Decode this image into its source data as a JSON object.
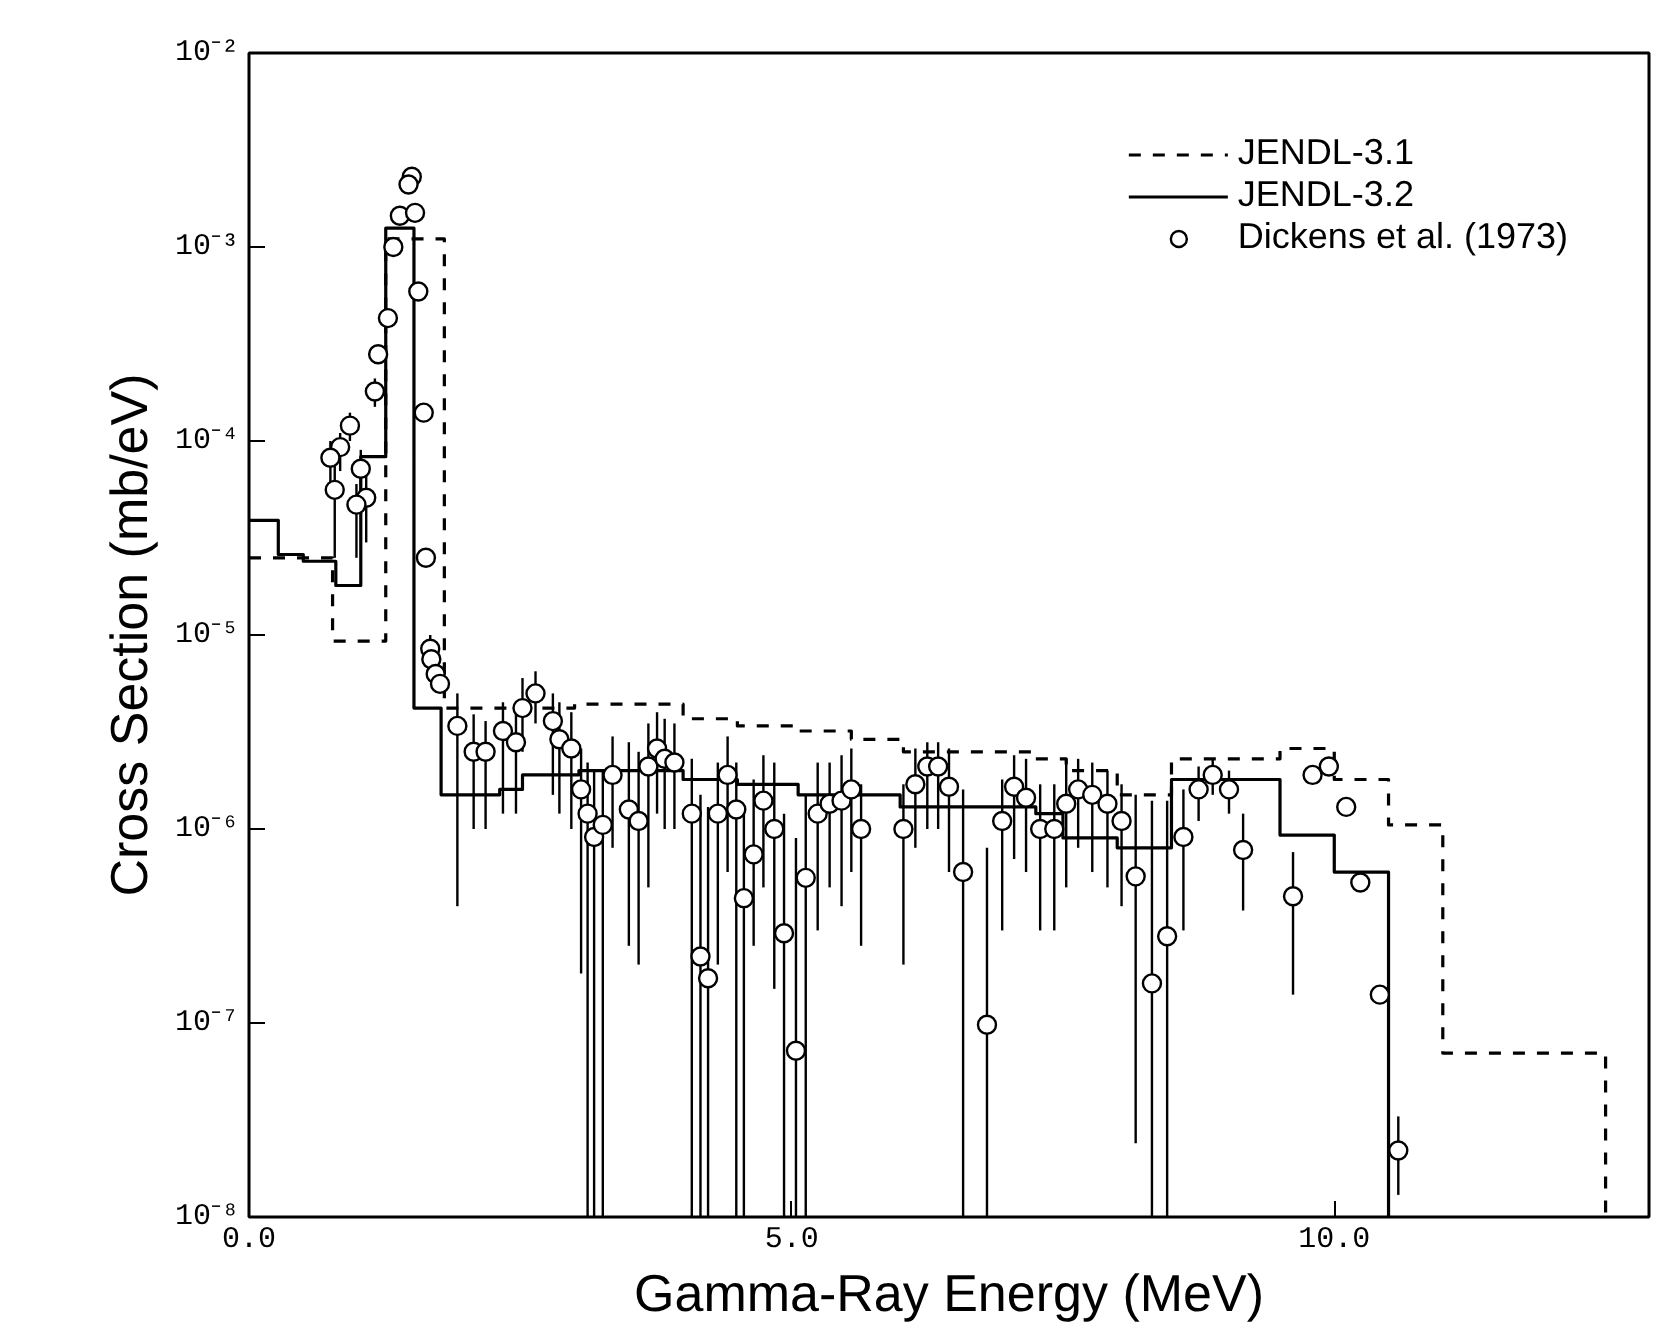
{
  "chart_data": {
    "type": "step",
    "xlabel": "Gamma-Ray Energy (MeV)",
    "ylabel": "Cross Section (mb/eV)",
    "log": "y",
    "grid": false,
    "legend": "top right",
    "xlim": [
      0,
      12.9
    ],
    "xticks": [
      {
        "value": 0,
        "label": "0.0"
      },
      {
        "value": 5,
        "label": "5.0"
      },
      {
        "value": 10,
        "label": "10.0"
      }
    ],
    "ylim": [
      1e-08,
      0.01
    ],
    "yticks": [
      {
        "value": 1e-08,
        "label": "10⁻⁸"
      },
      {
        "value": 1e-07,
        "label": "10⁻⁷"
      },
      {
        "value": 1e-06,
        "label": "10⁻⁶"
      },
      {
        "value": 1e-05,
        "label": "10⁻⁵"
      },
      {
        "value": 0.0001,
        "label": "10⁻⁴"
      },
      {
        "value": 0.001,
        "label": "10⁻³"
      },
      {
        "value": 0.01,
        "label": "10⁻²"
      }
    ],
    "series": [
      {
        "name": "JENDL-3.1",
        "line_style": "dashed",
        "color": "#000000",
        "x": [
          0,
          0.77,
          1.26,
          1.8,
          3.0,
          4.0,
          4.5,
          5.06,
          5.55,
          6.03,
          7.25,
          7.53,
          8.0,
          8.5,
          9.5,
          10.0,
          10.5,
          11.0,
          12.5
        ],
        "values": [
          2.5e-05,
          9.3e-06,
          0.0011,
          4.2e-06,
          4.4e-06,
          3.7e-06,
          3.4e-06,
          3.2e-06,
          2.9e-06,
          2.5e-06,
          2.3e-06,
          2e-06,
          1.5e-06,
          2.3e-06,
          2.6e-06,
          1.8e-06,
          1.05e-06,
          7e-08,
          1e-08
        ]
      },
      {
        "name": "JENDL-3.2",
        "line_style": "solid",
        "color": "#000000",
        "x": [
          0,
          0.27,
          0.5,
          0.8,
          1.03,
          1.26,
          1.52,
          1.77,
          2.31,
          2.52,
          3.04,
          4.0,
          4.5,
          5.06,
          6.0,
          7.25,
          7.5,
          8.0,
          8.5,
          9.5,
          10.0,
          10.5
        ],
        "values": [
          3.9e-05,
          2.6e-05,
          2.4e-05,
          1.8e-05,
          8.3e-05,
          0.00125,
          4.2e-06,
          1.5e-06,
          1.6e-06,
          1.9e-06,
          2e-06,
          1.8e-06,
          1.7e-06,
          1.5e-06,
          1.3e-06,
          1.2e-06,
          9e-07,
          8e-07,
          1.8e-06,
          9.3e-07,
          6e-07,
          1e-08
        ]
      },
      {
        "name": "Dickens et al. (1973)",
        "type": "scatter",
        "marker": "circle",
        "color": "#000000",
        "x": [
          1.5,
          1.47,
          1.39,
          1.53,
          1.33,
          1.56,
          1.28,
          1.19,
          1.16,
          1.61,
          0.93,
          0.84,
          0.75,
          0.79,
          1.03,
          1.08,
          0.99,
          1.63,
          1.67,
          1.68,
          1.72,
          1.76,
          1.92,
          2.07,
          2.18,
          2.34,
          2.46,
          2.52,
          2.64,
          2.8,
          2.86,
          2.97,
          3.06,
          3.12,
          3.18,
          3.26,
          3.35,
          3.5,
          3.59,
          3.68,
          3.76,
          3.83,
          3.92,
          4.08,
          4.16,
          4.23,
          4.32,
          4.41,
          4.49,
          4.56,
          4.65,
          4.74,
          4.84,
          4.93,
          5.04,
          5.13,
          5.24,
          5.35,
          5.46,
          5.55,
          5.64,
          6.03,
          6.14,
          6.25,
          6.35,
          6.45,
          6.58,
          6.8,
          6.94,
          7.05,
          7.16,
          7.29,
          7.42,
          7.53,
          7.64,
          7.77,
          7.91,
          8.04,
          8.17,
          8.32,
          8.46,
          8.61,
          8.75,
          8.88,
          9.03,
          9.16,
          9.62,
          9.8,
          9.95,
          10.11,
          10.24,
          10.42,
          10.59
        ],
        "values": [
          0.0023,
          0.0021,
          0.00145,
          0.0015,
          0.001,
          0.00059,
          0.00043,
          0.00028,
          0.00018,
          0.00014,
          0.00012,
          9.3e-05,
          8.2e-05,
          5.6e-05,
          7.2e-05,
          5.1e-05,
          4.7e-05,
          2.5e-05,
          8.5e-06,
          7.5e-06,
          6.3e-06,
          5.6e-06,
          3.4e-06,
          2.5e-06,
          2.5e-06,
          3.2e-06,
          2.8e-06,
          4.2e-06,
          5e-06,
          3.6e-06,
          2.9e-06,
          2.6e-06,
          1.6e-06,
          1.2e-06,
          9.1e-07,
          1.05e-06,
          1.9e-06,
          1.26e-06,
          1.1e-06,
          2.1e-06,
          2.6e-06,
          2.3e-06,
          2.2e-06,
          1.2e-06,
          2.2e-07,
          1.7e-07,
          1.2e-06,
          1.9e-06,
          1.26e-06,
          4.4e-07,
          7.4e-07,
          1.4e-06,
          1e-06,
          2.9e-07,
          7.2e-08,
          5.6e-07,
          1.2e-06,
          1.35e-06,
          1.4e-06,
          1.6e-06,
          1e-06,
          1e-06,
          1.7e-06,
          2.1e-06,
          2.1e-06,
          1.65e-06,
          6e-07,
          9.8e-08,
          1.1e-06,
          1.65e-06,
          1.45e-06,
          1e-06,
          1e-06,
          1.35e-06,
          1.6e-06,
          1.5e-06,
          1.35e-06,
          1.1e-06,
          5.7e-07,
          1.6e-07,
          2.8e-07,
          9.1e-07,
          1.6e-06,
          1.9e-06,
          1.6e-06,
          7.8e-07,
          4.5e-07,
          1.9e-06,
          2.1e-06,
          1.3e-06,
          5.3e-07,
          1.4e-07,
          2.2e-08
        ],
        "errors": [
          null,
          null,
          null,
          null,
          null,
          null,
          null,
          null,
          [
            0.00015,
            0.00021
          ],
          null,
          [
            0.0001,
            0.00014
          ],
          [
            7e-05,
            0.00011
          ],
          [
            6e-05,
            0.0001
          ],
          [
            2.5e-05,
            8e-05
          ],
          [
            5e-05,
            9e-05
          ],
          [
            3e-05,
            7e-05
          ],
          [
            2.5e-05,
            6e-05
          ],
          null,
          [
            7e-06,
            1e-05
          ],
          null,
          null,
          null,
          [
            4e-07,
            5e-06
          ],
          [
            1e-06,
            3.9e-06
          ],
          [
            1e-06,
            3.6e-06
          ],
          [
            1.2e-06,
            4.5e-06
          ],
          [
            1.2e-06,
            4.2e-06
          ],
          [
            2.5e-06,
            6e-06
          ],
          [
            3.5e-06,
            6.5e-06
          ],
          [
            1.5e-06,
            5e-06
          ],
          [
            1.2e-06,
            4.5e-06
          ],
          [
            1e-06,
            4e-06
          ],
          [
            1.8e-07,
            2.6e-06
          ],
          [
            1e-08,
            2.2e-06
          ],
          [
            1e-08,
            2e-06
          ],
          [
            1e-08,
            2e-06
          ],
          [
            8e-07,
            3e-06
          ],
          [
            2.5e-07,
            2.8e-06
          ],
          [
            2e-07,
            2.5e-06
          ],
          [
            5e-07,
            3.5e-06
          ],
          [
            1.2e-06,
            4e-06
          ],
          [
            1e-06,
            3.7e-06
          ],
          [
            1e-06,
            3.5e-06
          ],
          [
            1e-08,
            2.3e-06
          ],
          [
            1e-08,
            1.5e-06
          ],
          [
            1e-08,
            1.3e-06
          ],
          [
            2e-07,
            2.2e-06
          ],
          [
            6e-07,
            3e-06
          ],
          [
            1e-08,
            2.2e-06
          ],
          [
            1e-08,
            1.3e-06
          ],
          [
            2.5e-07,
            1.8e-06
          ],
          [
            5e-07,
            2.4e-06
          ],
          [
            1.5e-07,
            2.2e-06
          ],
          [
            1e-08,
            1.2e-06
          ],
          [
            1e-08,
            9e-07
          ],
          [
            1e-08,
            1.5e-06
          ],
          [
            3e-07,
            2.2e-06
          ],
          [
            5e-07,
            2.2e-06
          ],
          [
            4e-07,
            2.4e-06
          ],
          [
            6e-07,
            2.6e-06
          ],
          [
            2.5e-07,
            1.7e-06
          ],
          [
            2e-07,
            1.7e-06
          ],
          [
            8e-07,
            2.6e-06
          ],
          [
            1e-06,
            2.8e-06
          ],
          [
            1e-06,
            2.8e-06
          ],
          [
            6e-07,
            2.6e-06
          ],
          [
            1e-08,
            1.6e-06
          ],
          [
            1e-08,
            8e-07
          ],
          [
            3e-07,
            1.8e-06
          ],
          [
            7e-07,
            2.4e-06
          ],
          [
            6e-07,
            2.3e-06
          ],
          [
            3e-07,
            1.7e-06
          ],
          [
            3e-07,
            1.7e-06
          ],
          [
            5e-07,
            2.3e-06
          ],
          [
            8e-07,
            2.3e-06
          ],
          [
            6e-07,
            2.2e-06
          ],
          [
            5e-07,
            2e-06
          ],
          [
            4e-07,
            1.7e-06
          ],
          [
            2.4e-08,
            1.5e-06
          ],
          [
            1e-08,
            1.4e-06
          ],
          [
            1e-08,
            1.4e-06
          ],
          [
            3e-07,
            1.6e-06
          ],
          [
            1.1e-06,
            2.1e-06
          ],
          [
            1.5e-06,
            2.3e-06
          ],
          [
            1.2e-06,
            2e-06
          ],
          [
            3.8e-07,
            1.2e-06
          ],
          [
            1.4e-07,
            7.6e-07
          ],
          null,
          null,
          null,
          null,
          null,
          [
            1.3e-08,
            3.3e-08
          ]
        ]
      }
    ]
  }
}
